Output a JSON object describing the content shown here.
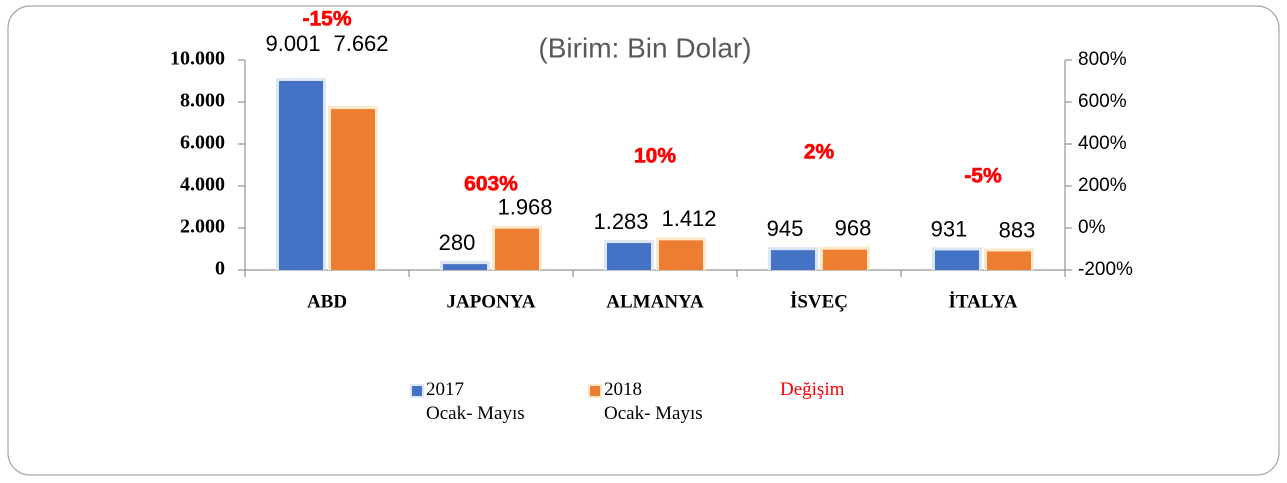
{
  "chart_data": {
    "type": "bar",
    "title": "(Birim: Bin Dolar)",
    "categories": [
      "ABD",
      "JAPONYA",
      "ALMANYA",
      "İSVEÇ",
      "İTALYA"
    ],
    "series": [
      {
        "name": "2017\nOcak- Mayıs",
        "color": "#4472c4",
        "values": [
          9001,
          280,
          1283,
          945,
          931
        ],
        "value_labels": [
          "9.001",
          "280",
          "1.283",
          "945",
          "931"
        ]
      },
      {
        "name": "2018\nOcak- Mayıs",
        "color": "#ed7d31",
        "values": [
          7662,
          1968,
          1412,
          968,
          883
        ],
        "value_labels": [
          "7.662",
          "1.968",
          "1.412",
          "968",
          "883"
        ]
      },
      {
        "name": "Değişim",
        "color": "#ff0000",
        "axis": "y2",
        "values": [
          -15,
          603,
          10,
          2,
          -5
        ],
        "value_labels": [
          "-15%",
          "603%",
          "10%",
          "2%",
          "-5%"
        ]
      }
    ],
    "ylim": [
      0,
      10000
    ],
    "yticks": [
      0,
      {
        "value": 2000,
        "label": "2.000"
      },
      {
        "value": 4000,
        "label": "4.000"
      },
      {
        "value": 6000,
        "label": "6.000"
      },
      {
        "value": 8000,
        "label": "8.000"
      },
      {
        "value": 10000,
        "label": "10.000"
      }
    ],
    "y2lim": [
      -200,
      800
    ],
    "y2ticks": [
      {
        "value": -200,
        "label": "-200%"
      },
      {
        "value": 0,
        "label": "0%"
      },
      {
        "value": 200,
        "label": "200%"
      },
      {
        "value": 400,
        "label": "400%"
      },
      {
        "value": 600,
        "label": "600%"
      },
      {
        "value": 800,
        "label": "800%"
      }
    ],
    "legend": "bottom"
  }
}
